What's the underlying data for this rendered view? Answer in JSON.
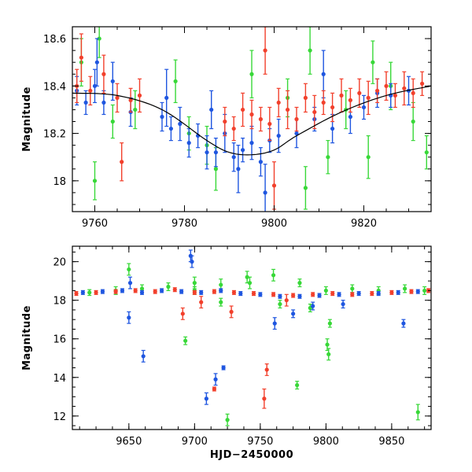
{
  "colors": {
    "blue": "#1f56e0",
    "red": "#f2402c",
    "green": "#38d838",
    "model": "#000000"
  },
  "chart_data": [
    {
      "name": "top-panel",
      "type": "scatter",
      "title": "",
      "xlabel": "",
      "ylabel": "Magnitude",
      "xlim": [
        9755,
        9835
      ],
      "ylim": [
        18.65,
        17.87
      ],
      "y_inverted": true,
      "xticks": [
        9760,
        9780,
        9800,
        9820
      ],
      "yticks": [
        18.0,
        18.2,
        18.4,
        18.6
      ],
      "xtick_labels": [
        "9760",
        "9780",
        "9800",
        "9820"
      ],
      "ytick_labels": [
        "18",
        "18.2",
        "18.4",
        "18.6"
      ],
      "model_curve": {
        "x": [
          9755,
          9765,
          9775,
          9785,
          9790,
          9795,
          9800,
          9805,
          9815,
          9825,
          9835
        ],
        "y": [
          18.37,
          18.36,
          18.3,
          18.17,
          18.12,
          18.11,
          18.13,
          18.19,
          18.29,
          18.36,
          18.4
        ]
      },
      "series": [
        {
          "name": "blue",
          "x": [
            9756,
            9758,
            9760,
            9762,
            9764,
            9768,
            9775,
            9777,
            9779,
            9781,
            9783,
            9785,
            9787,
            9789,
            9791,
            9793,
            9795,
            9797,
            9799,
            9801,
            9805,
            9809,
            9813,
            9817,
            9820,
            9823,
            9826,
            9830,
            9760.5,
            9776,
            9786,
            9792,
            9798,
            9811
          ],
          "y": [
            18.38,
            18.33,
            18.4,
            18.33,
            18.42,
            18.29,
            18.27,
            18.22,
            18.24,
            18.16,
            18.19,
            18.12,
            18.12,
            18.2,
            18.1,
            18.13,
            18.16,
            18.08,
            18.17,
            18.19,
            18.2,
            18.26,
            18.22,
            18.27,
            18.31,
            18.37,
            18.36,
            18.38,
            18.5,
            18.35,
            18.3,
            18.05,
            17.95,
            18.45
          ],
          "err": [
            0.06,
            0.05,
            0.07,
            0.05,
            0.08,
            0.06,
            0.06,
            0.05,
            0.07,
            0.06,
            0.05,
            0.07,
            0.06,
            0.08,
            0.06,
            0.05,
            0.07,
            0.06,
            0.05,
            0.07,
            0.06,
            0.05,
            0.06,
            0.07,
            0.05,
            0.06,
            0.05,
            0.06,
            0.1,
            0.12,
            0.08,
            0.1,
            0.12,
            0.1
          ]
        },
        {
          "name": "red",
          "x": [
            9756,
            9759,
            9762,
            9765,
            9768,
            9770,
            9789,
            9791,
            9793,
            9795,
            9797,
            9799,
            9801,
            9803,
            9805,
            9807,
            9809,
            9811,
            9813,
            9815,
            9817,
            9819,
            9821,
            9823,
            9825,
            9827,
            9829,
            9831,
            9833,
            9798,
            9800,
            9766,
            9757
          ],
          "y": [
            18.4,
            18.38,
            18.45,
            18.35,
            18.34,
            18.36,
            18.25,
            18.22,
            18.3,
            18.28,
            18.26,
            18.24,
            18.33,
            18.3,
            18.26,
            18.35,
            18.29,
            18.33,
            18.31,
            18.36,
            18.34,
            18.37,
            18.35,
            18.38,
            18.4,
            18.36,
            18.39,
            18.37,
            18.41,
            18.55,
            17.98,
            18.08,
            18.52
          ],
          "err": [
            0.07,
            0.06,
            0.08,
            0.06,
            0.05,
            0.07,
            0.06,
            0.05,
            0.07,
            0.06,
            0.05,
            0.07,
            0.06,
            0.08,
            0.05,
            0.06,
            0.07,
            0.05,
            0.06,
            0.07,
            0.05,
            0.06,
            0.07,
            0.05,
            0.06,
            0.05,
            0.07,
            0.06,
            0.05,
            0.1,
            0.1,
            0.08,
            0.1
          ]
        },
        {
          "name": "green",
          "x": [
            9757,
            9760,
            9764,
            9769,
            9778,
            9781,
            9785,
            9787,
            9795,
            9803,
            9807,
            9812,
            9816,
            9821,
            9826,
            9831,
            9834,
            9822,
            9808,
            9761
          ],
          "y": [
            18.5,
            18.0,
            18.25,
            18.3,
            18.42,
            18.2,
            18.15,
            18.05,
            18.45,
            18.35,
            17.97,
            18.1,
            18.3,
            18.1,
            18.4,
            18.25,
            18.12,
            18.5,
            18.55,
            18.6
          ],
          "err": [
            0.1,
            0.08,
            0.07,
            0.08,
            0.09,
            0.07,
            0.08,
            0.09,
            0.1,
            0.08,
            0.09,
            0.07,
            0.08,
            0.09,
            0.1,
            0.08,
            0.07,
            0.09,
            0.1,
            0.08
          ]
        }
      ]
    },
    {
      "name": "bottom-panel",
      "type": "scatter",
      "title": "",
      "xlabel": "HJD−2450000",
      "ylabel": "Magnitude",
      "xlim": [
        9607,
        9880
      ],
      "ylim": [
        20.8,
        11.3
      ],
      "y_inverted": true,
      "xticks": [
        9650,
        9700,
        9750,
        9800,
        9850
      ],
      "yticks": [
        12,
        14,
        16,
        18,
        20
      ],
      "xtick_labels": [
        "9650",
        "9700",
        "9750",
        "9800",
        "9850"
      ],
      "ytick_labels": [
        "12",
        "14",
        "16",
        "18",
        "20"
      ],
      "series": [
        {
          "name": "blue",
          "x": [
            9615,
            9630,
            9645,
            9660,
            9675,
            9690,
            9705,
            9720,
            9735,
            9750,
            9765,
            9780,
            9795,
            9810,
            9825,
            9840,
            9855,
            9870,
            9650,
            9661,
            9709,
            9716,
            9722,
            9698,
            9697,
            9761,
            9790,
            9859,
            9651,
            9775,
            9813
          ],
          "y": [
            18.4,
            18.45,
            18.5,
            18.4,
            18.5,
            18.45,
            18.4,
            18.5,
            18.35,
            18.3,
            18.2,
            18.2,
            18.25,
            18.3,
            18.35,
            18.35,
            18.4,
            18.45,
            17.1,
            15.1,
            12.9,
            13.9,
            14.5,
            20.0,
            20.3,
            16.8,
            17.7,
            16.8,
            18.9,
            17.3,
            17.8
          ],
          "err": [
            0.1,
            0.1,
            0.1,
            0.1,
            0.1,
            0.1,
            0.1,
            0.1,
            0.1,
            0.1,
            0.1,
            0.1,
            0.1,
            0.1,
            0.1,
            0.1,
            0.1,
            0.1,
            0.3,
            0.3,
            0.3,
            0.3,
            0.1,
            0.3,
            0.3,
            0.3,
            0.2,
            0.2,
            0.3,
            0.2,
            0.2
          ]
        },
        {
          "name": "red",
          "x": [
            9610,
            9625,
            9640,
            9655,
            9670,
            9685,
            9700,
            9715,
            9730,
            9745,
            9760,
            9775,
            9790,
            9805,
            9820,
            9835,
            9850,
            9865,
            9878,
            9715,
            9753,
            9755,
            9691,
            9728,
            9770,
            9705
          ],
          "y": [
            18.35,
            18.4,
            18.45,
            18.5,
            18.45,
            18.55,
            18.4,
            18.45,
            18.4,
            18.35,
            18.3,
            18.25,
            18.3,
            18.35,
            18.3,
            18.35,
            18.4,
            18.45,
            18.5,
            13.4,
            12.9,
            14.4,
            17.3,
            17.4,
            18.0,
            17.9
          ],
          "err": [
            0.1,
            0.1,
            0.1,
            0.1,
            0.1,
            0.1,
            0.1,
            0.1,
            0.1,
            0.1,
            0.1,
            0.1,
            0.1,
            0.1,
            0.1,
            0.1,
            0.1,
            0.1,
            0.1,
            0.1,
            0.5,
            0.3,
            0.3,
            0.3,
            0.3,
            0.3
          ]
        },
        {
          "name": "green",
          "x": [
            9620,
            9640,
            9660,
            9680,
            9700,
            9720,
            9740,
            9760,
            9780,
            9800,
            9820,
            9840,
            9860,
            9875,
            9650,
            9693,
            9725,
            9778,
            9802,
            9801,
            9870,
            9803,
            9720,
            9788,
            9765,
            9700,
            9742
          ],
          "y": [
            18.4,
            18.5,
            18.6,
            18.7,
            18.5,
            18.8,
            19.2,
            19.3,
            18.9,
            18.5,
            18.6,
            18.5,
            18.6,
            18.5,
            19.6,
            15.9,
            11.8,
            13.6,
            15.2,
            15.7,
            12.2,
            16.8,
            17.9,
            17.6,
            17.8,
            18.9,
            18.9
          ],
          "err": [
            0.15,
            0.2,
            0.2,
            0.2,
            0.2,
            0.3,
            0.3,
            0.3,
            0.2,
            0.2,
            0.2,
            0.2,
            0.2,
            0.2,
            0.3,
            0.2,
            0.3,
            0.2,
            0.3,
            0.3,
            0.4,
            0.2,
            0.2,
            0.2,
            0.2,
            0.3,
            0.3
          ]
        }
      ]
    }
  ]
}
